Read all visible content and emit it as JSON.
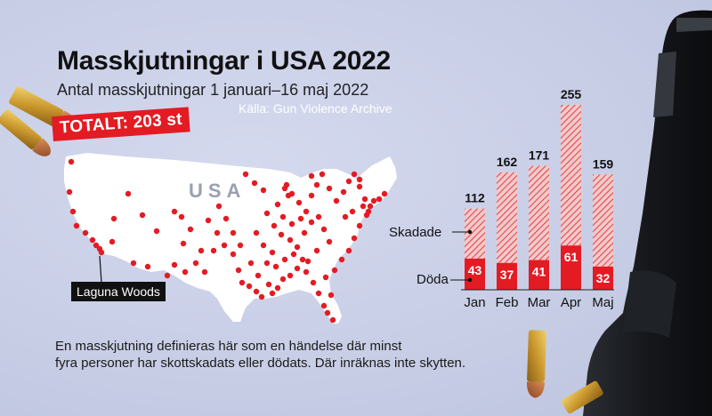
{
  "title": "Masskjutningar i USA 2022",
  "subtitle": "Antal masskjutningar 1 januari–16 maj 2022",
  "source": "Källa: Gun Violence Archive",
  "total_badge": "TOTALT: 203 st",
  "map": {
    "country_label": "USA",
    "callout": "Laguna Woods"
  },
  "note_lines": [
    "En masskjutning definieras här som en händelse där minst",
    "fyra personer har skottskadats eller dödats. Där inräknas inte skytten."
  ],
  "colors": {
    "accent": "#e31b23",
    "hatch": "#e8a7a9",
    "map_fill": "#ffffff",
    "background": "#c9cfe6"
  },
  "chart_data": {
    "type": "bar",
    "stacked": true,
    "categories": [
      "Jan",
      "Feb",
      "Mar",
      "Apr",
      "Maj"
    ],
    "totals": [
      112,
      162,
      171,
      255,
      159
    ],
    "series": [
      {
        "name": "Döda",
        "values": [
          43,
          37,
          41,
          61,
          32
        ]
      },
      {
        "name": "Skadade",
        "values": [
          69,
          125,
          130,
          194,
          127
        ]
      }
    ],
    "legend": [
      "Skadade",
      "Döda"
    ]
  }
}
